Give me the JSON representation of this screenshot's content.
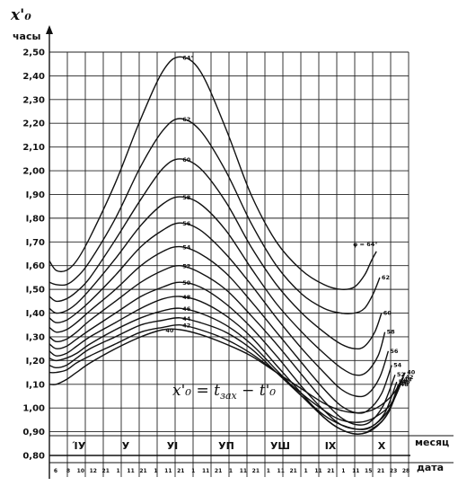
{
  "chart_data": {
    "type": "line",
    "y_axis_label": "x'₀",
    "y_unit": "часы",
    "x_axis_label_top": "месяц",
    "x_axis_label_bottom": "дата",
    "formula_left": "x'₀ = t",
    "formula_sub": "зах",
    "formula_right": " − t'₀",
    "ylim": [
      0.8,
      2.5
    ],
    "yticks": [
      "0,80",
      "0,90",
      "1,00",
      "I,10",
      "I,20",
      "I,30",
      "I,40",
      "I,50",
      "I,60",
      "I,70",
      "I,80",
      "I,90",
      "2,00",
      "2,10",
      "2,20",
      "2,30",
      "2,40",
      "2,50"
    ],
    "months": [
      "ΊУ",
      "У",
      "УI",
      "УП",
      "УШ",
      "IX",
      "X"
    ],
    "dates": [
      "6",
      "8",
      "10",
      "12",
      "21",
      "1",
      "11",
      "21",
      "1",
      "11",
      "21",
      "1",
      "11",
      "21",
      "1",
      "11",
      "21",
      "1",
      "11",
      "21",
      "1",
      "11",
      "21",
      "1",
      "11",
      "15",
      "21",
      "23",
      "28"
    ],
    "grid": true,
    "x_domain_days": [
      96,
      308
    ],
    "series": [
      {
        "name": "φ = 64°",
        "label": "64°",
        "end_label": "φ = 64°",
        "x": [
          96,
          100,
          106,
          112,
          120,
          135,
          150,
          163,
          173,
          185,
          200,
          215,
          230,
          245,
          258,
          268,
          276,
          282,
          286,
          289
        ],
        "y": [
          1.62,
          1.58,
          1.58,
          1.62,
          1.72,
          1.95,
          2.22,
          2.42,
          2.48,
          2.42,
          2.18,
          1.9,
          1.7,
          1.58,
          1.52,
          1.5,
          1.51,
          1.56,
          1.62,
          1.66
        ]
      },
      {
        "name": "62",
        "label": "62",
        "end_label": "62",
        "x": [
          96,
          100,
          106,
          112,
          120,
          135,
          150,
          163,
          173,
          185,
          200,
          215,
          230,
          245,
          258,
          268,
          276,
          282,
          287,
          291
        ],
        "y": [
          1.53,
          1.52,
          1.52,
          1.55,
          1.62,
          1.8,
          2.02,
          2.17,
          2.22,
          2.17,
          2.0,
          1.78,
          1.6,
          1.48,
          1.42,
          1.4,
          1.4,
          1.42,
          1.48,
          1.55
        ]
      },
      {
        "name": "60",
        "label": "60",
        "end_label": "60",
        "x": [
          96,
          100,
          106,
          112,
          120,
          135,
          150,
          163,
          173,
          185,
          200,
          215,
          230,
          245,
          258,
          268,
          276,
          282,
          288,
          292
        ],
        "y": [
          1.47,
          1.45,
          1.46,
          1.49,
          1.55,
          1.71,
          1.88,
          2.01,
          2.05,
          2.01,
          1.87,
          1.68,
          1.52,
          1.4,
          1.32,
          1.27,
          1.25,
          1.26,
          1.32,
          1.4
        ]
      },
      {
        "name": "58",
        "label": "58",
        "end_label": "58",
        "x": [
          96,
          100,
          106,
          112,
          120,
          135,
          150,
          163,
          173,
          185,
          200,
          215,
          230,
          245,
          258,
          268,
          276,
          283,
          290,
          294
        ],
        "y": [
          1.42,
          1.4,
          1.41,
          1.44,
          1.5,
          1.63,
          1.77,
          1.86,
          1.89,
          1.86,
          1.75,
          1.59,
          1.44,
          1.32,
          1.23,
          1.17,
          1.14,
          1.15,
          1.22,
          1.32
        ]
      },
      {
        "name": "56",
        "label": "56",
        "end_label": "56",
        "x": [
          96,
          100,
          106,
          112,
          120,
          135,
          150,
          163,
          173,
          185,
          200,
          215,
          230,
          245,
          258,
          268,
          277,
          284,
          291,
          296
        ],
        "y": [
          1.38,
          1.36,
          1.37,
          1.4,
          1.45,
          1.56,
          1.68,
          1.75,
          1.78,
          1.75,
          1.65,
          1.52,
          1.38,
          1.25,
          1.15,
          1.08,
          1.05,
          1.06,
          1.13,
          1.24
        ]
      },
      {
        "name": "54",
        "label": "54",
        "end_label": "54",
        "x": [
          96,
          100,
          106,
          112,
          120,
          135,
          150,
          163,
          173,
          185,
          200,
          215,
          230,
          245,
          258,
          268,
          277,
          284,
          292,
          298
        ],
        "y": [
          1.34,
          1.32,
          1.33,
          1.36,
          1.41,
          1.5,
          1.6,
          1.66,
          1.68,
          1.65,
          1.57,
          1.45,
          1.32,
          1.19,
          1.08,
          1.01,
          0.98,
          0.99,
          1.06,
          1.18
        ]
      },
      {
        "name": "52",
        "label": "52",
        "end_label": "52",
        "x": [
          96,
          100,
          106,
          112,
          120,
          135,
          150,
          163,
          173,
          185,
          200,
          215,
          230,
          245,
          258,
          268,
          277,
          285,
          293,
          300
        ],
        "y": [
          1.3,
          1.28,
          1.29,
          1.32,
          1.37,
          1.45,
          1.53,
          1.58,
          1.6,
          1.57,
          1.5,
          1.39,
          1.27,
          1.14,
          1.03,
          0.96,
          0.93,
          0.94,
          1.01,
          1.14
        ]
      },
      {
        "name": "50",
        "label": "50",
        "end_label": "50",
        "x": [
          96,
          100,
          106,
          112,
          120,
          135,
          150,
          163,
          173,
          185,
          200,
          215,
          230,
          245,
          258,
          268,
          278,
          286,
          294,
          301
        ],
        "y": [
          1.27,
          1.25,
          1.26,
          1.29,
          1.33,
          1.4,
          1.47,
          1.51,
          1.53,
          1.51,
          1.44,
          1.34,
          1.22,
          1.09,
          0.99,
          0.93,
          0.91,
          0.92,
          0.98,
          1.11
        ]
      },
      {
        "name": "48",
        "label": "48",
        "end_label": "48",
        "x": [
          96,
          100,
          106,
          112,
          120,
          135,
          150,
          163,
          173,
          185,
          200,
          215,
          230,
          245,
          258,
          268,
          278,
          286,
          295,
          302
        ],
        "y": [
          1.24,
          1.22,
          1.23,
          1.26,
          1.3,
          1.36,
          1.42,
          1.46,
          1.47,
          1.45,
          1.39,
          1.3,
          1.18,
          1.06,
          0.96,
          0.91,
          0.89,
          0.91,
          0.97,
          1.1
        ]
      },
      {
        "name": "46",
        "label": "46",
        "end_label": "46",
        "x": [
          96,
          100,
          106,
          112,
          120,
          135,
          150,
          163,
          173,
          185,
          200,
          215,
          230,
          245,
          258,
          268,
          278,
          287,
          296,
          303
        ],
        "y": [
          1.21,
          1.2,
          1.21,
          1.23,
          1.27,
          1.33,
          1.38,
          1.41,
          1.42,
          1.4,
          1.35,
          1.27,
          1.16,
          1.05,
          0.96,
          0.91,
          0.89,
          0.91,
          0.98,
          1.11
        ]
      },
      {
        "name": "44",
        "label": "44",
        "end_label": "44",
        "x": [
          96,
          100,
          106,
          112,
          120,
          135,
          150,
          163,
          173,
          185,
          200,
          215,
          230,
          245,
          258,
          268,
          279,
          288,
          297,
          304
        ],
        "y": [
          1.18,
          1.17,
          1.18,
          1.21,
          1.25,
          1.3,
          1.35,
          1.37,
          1.38,
          1.36,
          1.32,
          1.25,
          1.15,
          1.05,
          0.97,
          0.93,
          0.91,
          0.93,
          1.0,
          1.12
        ]
      },
      {
        "name": "42",
        "label": "42",
        "end_label": "42",
        "x": [
          96,
          100,
          106,
          112,
          120,
          135,
          150,
          163,
          173,
          185,
          200,
          215,
          230,
          245,
          258,
          268,
          279,
          288,
          298,
          305
        ],
        "y": [
          1.15,
          1.15,
          1.16,
          1.19,
          1.22,
          1.27,
          1.32,
          1.34,
          1.35,
          1.33,
          1.29,
          1.23,
          1.15,
          1.06,
          0.99,
          0.95,
          0.94,
          0.96,
          1.02,
          1.13
        ]
      },
      {
        "name": "40",
        "label": "40",
        "end_label": "40",
        "x": [
          96,
          100,
          106,
          112,
          120,
          135,
          150,
          163,
          173,
          185,
          200,
          215,
          230,
          245,
          258,
          268,
          279,
          289,
          299,
          306
        ],
        "y": [
          1.1,
          1.1,
          1.12,
          1.15,
          1.19,
          1.25,
          1.3,
          1.33,
          1.33,
          1.31,
          1.27,
          1.22,
          1.15,
          1.08,
          1.02,
          0.99,
          0.98,
          1.0,
          1.06,
          1.15
        ]
      }
    ]
  }
}
